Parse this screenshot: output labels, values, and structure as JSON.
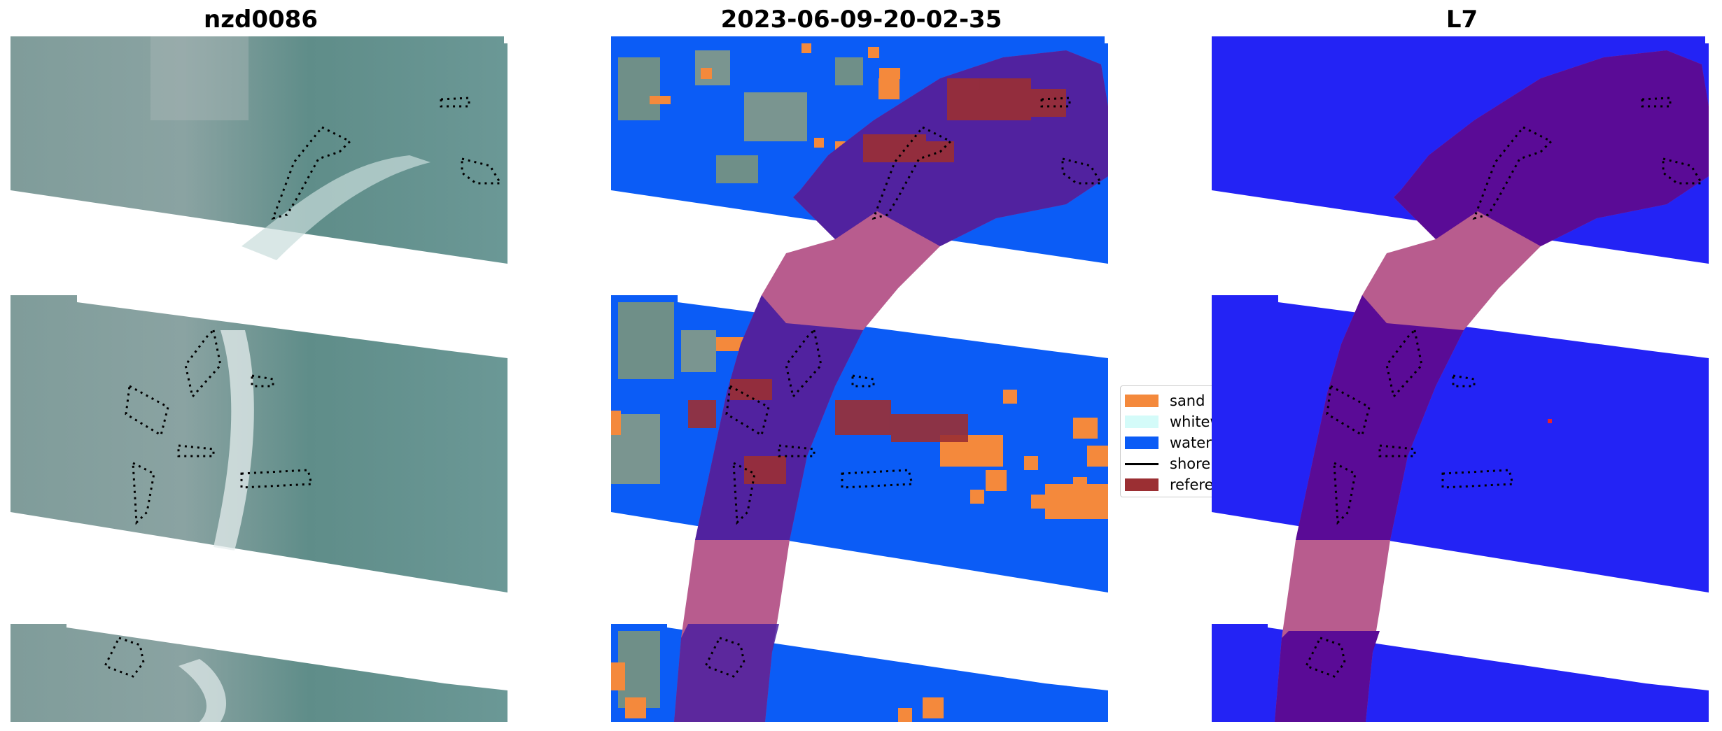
{
  "panels": [
    {
      "title": "nzd0086"
    },
    {
      "title": "2023-06-09-20-02-35"
    },
    {
      "title": "L7"
    }
  ],
  "legend": {
    "items": [
      {
        "label": "sand",
        "color": "#f4893c",
        "kind": "patch"
      },
      {
        "label": "whitewater",
        "color": "#d4fbf9",
        "kind": "patch"
      },
      {
        "label": "water",
        "color": "#0b5cf6",
        "kind": "patch"
      },
      {
        "label": "shoreline",
        "color": "#000000",
        "kind": "line"
      },
      {
        "label": "reference shoreline buffer",
        "color": "#9b2f33",
        "kind": "patch"
      }
    ]
  },
  "colors": {
    "imagery": "#6f9694",
    "water_classified": "#0b5cf6",
    "water_l7": "#2323f5",
    "buffer_pink": "#b85c8e",
    "overlap_purple": "#4b1fa0",
    "overlap_purple_l7": "#5a0b96",
    "sand": "#f4893c",
    "reference": "#9b2f33"
  }
}
